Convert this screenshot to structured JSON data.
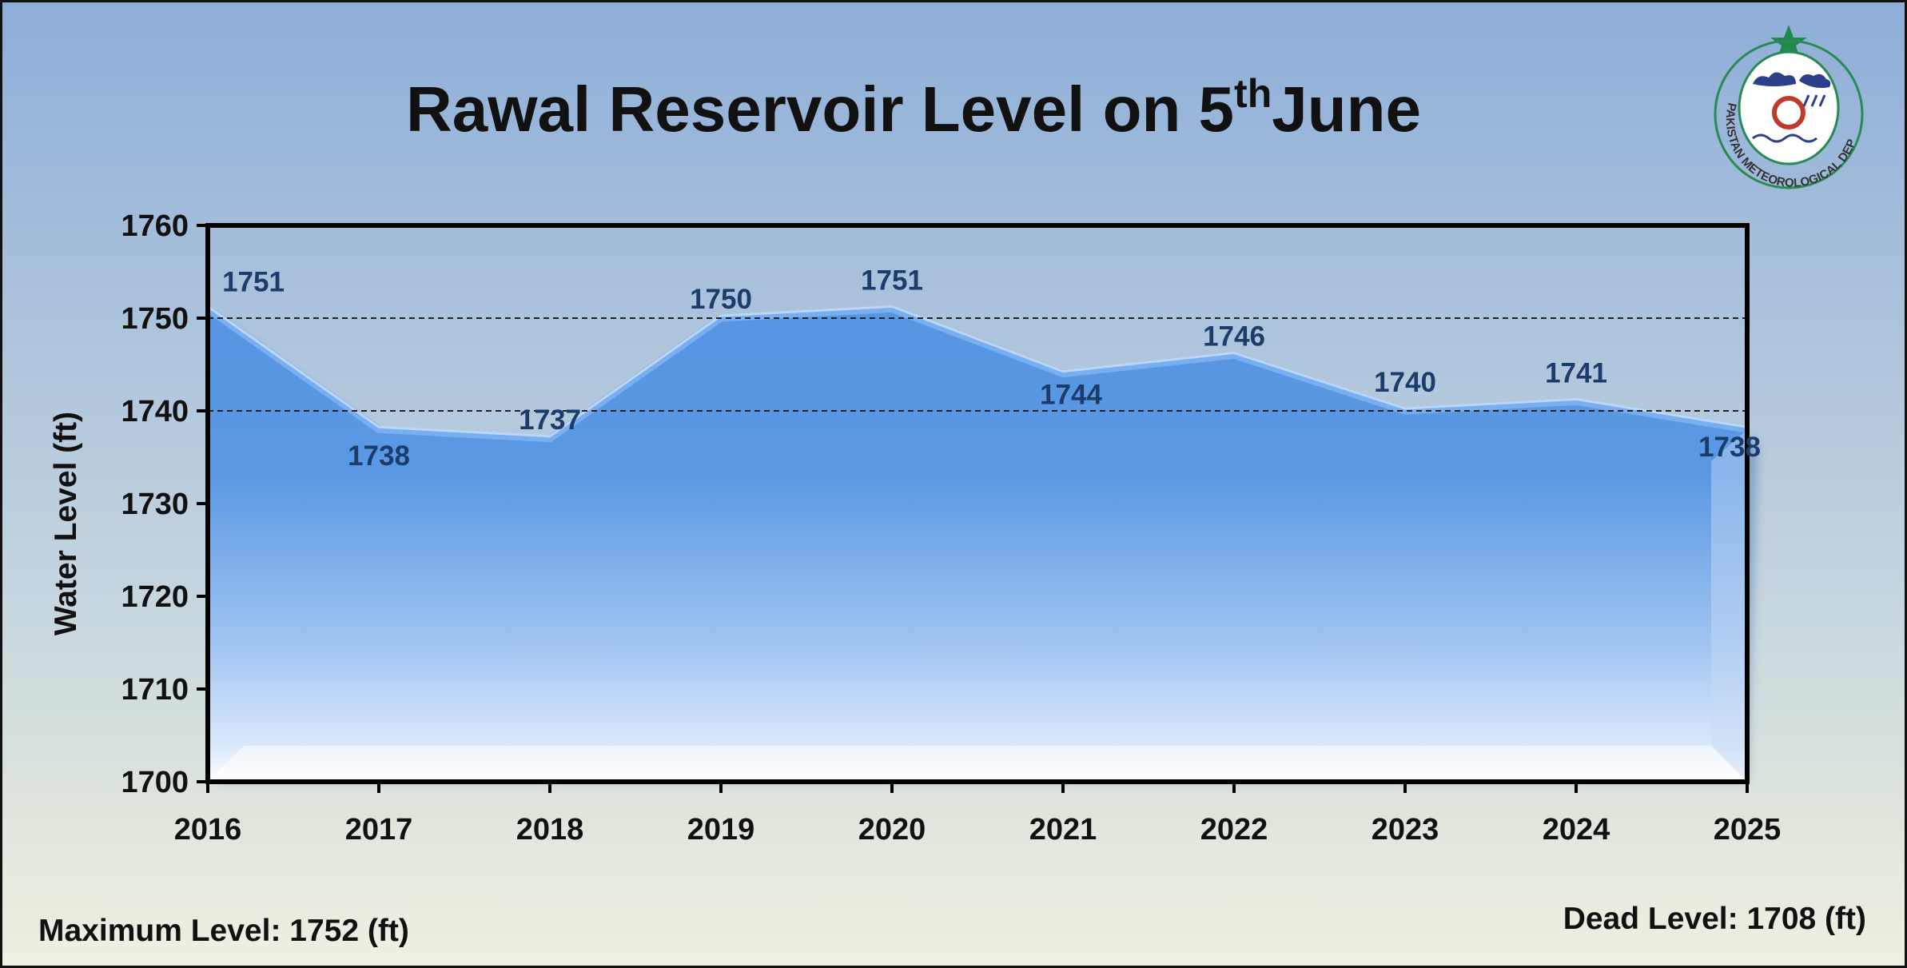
{
  "header": {
    "title_prefix": "Rawal Reservoir Level on 5",
    "title_sup": "th",
    "title_suffix": "June"
  },
  "logo": {
    "name": "Pakistan Meteorological Department seal",
    "text": "PAKISTAN METEOROLOGICAL DEPARTMENT"
  },
  "footer": {
    "max_level": "Maximum Level: 1752 (ft)",
    "dead_level": "Dead Level: 1708 (ft)"
  },
  "chart_data": {
    "type": "area",
    "title": "Rawal Reservoir Level on 5thJune",
    "ylabel": "Water Level (ft)",
    "xlabel": "",
    "categories": [
      "2016",
      "2017",
      "2018",
      "2019",
      "2020",
      "2021",
      "2022",
      "2023",
      "2024",
      "2025"
    ],
    "values": [
      1751,
      1738,
      1737,
      1750,
      1751,
      1744,
      1746,
      1740,
      1741,
      1738
    ],
    "ylim": [
      1700,
      1760
    ],
    "yticks": [
      1700,
      1710,
      1720,
      1730,
      1740,
      1750,
      1760
    ],
    "reference_lines": [
      1750,
      1740
    ],
    "legend": "none",
    "colors": {
      "fill_top": "#4e8fdf",
      "fill_bottom": "#ffffff",
      "label": "#1c3d6b"
    }
  }
}
